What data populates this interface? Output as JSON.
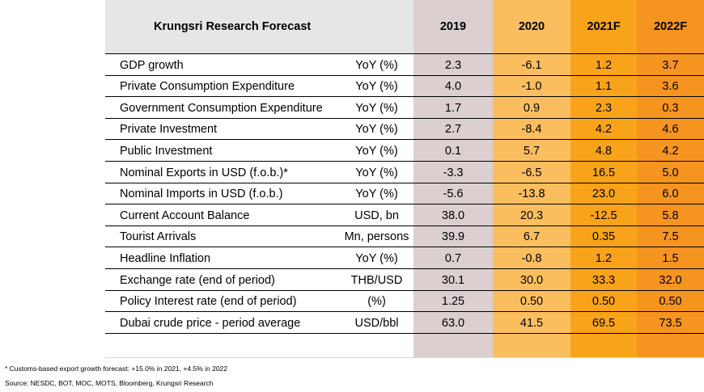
{
  "table": {
    "title": "Krungsri Research Forecast",
    "years": [
      "2019",
      "2020",
      "2021F",
      "2022F"
    ],
    "rows": [
      {
        "label": "GDP growth",
        "unit": "YoY (%)",
        "values": [
          "2.3",
          "-6.1",
          "1.2",
          "3.7"
        ]
      },
      {
        "label": "Private Consumption Expenditure",
        "unit": "YoY (%)",
        "values": [
          "4.0",
          "-1.0",
          "1.1",
          "3.6"
        ]
      },
      {
        "label": "Government Consumption Expenditure",
        "unit": "YoY (%)",
        "values": [
          "1.7",
          "0.9",
          "2.3",
          "0.3"
        ]
      },
      {
        "label": "Private Investment",
        "unit": "YoY (%)",
        "values": [
          "2.7",
          "-8.4",
          "4.2",
          "4.6"
        ]
      },
      {
        "label": "Public Investment",
        "unit": "YoY (%)",
        "values": [
          "0.1",
          "5.7",
          "4.8",
          "4.2"
        ]
      },
      {
        "label": "Nominal Exports in USD (f.o.b.)*",
        "unit": "YoY (%)",
        "values": [
          "-3.3",
          "-6.5",
          "16.5",
          "5.0"
        ]
      },
      {
        "label": "Nominal Imports in USD (f.o.b.)",
        "unit": "YoY (%)",
        "values": [
          "-5.6",
          "-13.8",
          "23.0",
          "6.0"
        ]
      },
      {
        "label": "Current Account Balance",
        "unit": "USD, bn",
        "values": [
          "38.0",
          "20.3",
          "-12.5",
          "5.8"
        ]
      },
      {
        "label": "Tourist Arrivals",
        "unit": "Mn, persons",
        "values": [
          "39.9",
          "6.7",
          "0.35",
          "7.5"
        ]
      },
      {
        "label": "Headline Inflation",
        "unit": "YoY (%)",
        "values": [
          "0.7",
          "-0.8",
          "1.2",
          "1.5"
        ]
      },
      {
        "label": "Exchange rate (end of period)",
        "unit": "THB/USD",
        "values": [
          "30.1",
          "30.0",
          "33.3",
          "32.0"
        ]
      },
      {
        "label": "Policy Interest rate (end of period)",
        "unit": "(%)",
        "values": [
          "1.25",
          "0.50",
          "0.50",
          "0.50"
        ]
      },
      {
        "label": "Dubai crude price - period average",
        "unit": "USD/bbl",
        "values": [
          "63.0",
          "41.5",
          "69.5",
          "73.5"
        ]
      }
    ]
  },
  "footnotes": {
    "note": "* Customs-based export growth forecast: +15.0% in 2021, +4.5% in 2022",
    "source": "Source: NESDC, BOT, MOC, MOTS, Bloomberg, Krungsri Research"
  },
  "colors": {
    "header_gray": "#e7e6e6",
    "col_2019": "#dbcfd0",
    "col_2020": "#fbbe5f",
    "col_2021": "#f9a31a",
    "col_2022": "#f69420"
  }
}
